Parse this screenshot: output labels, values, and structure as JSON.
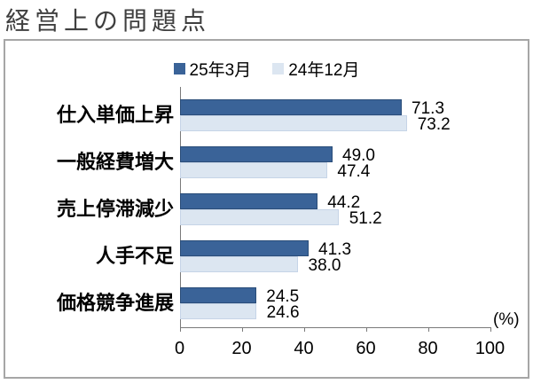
{
  "title": "経営上の問題点",
  "legend": [
    {
      "label": "25年3月",
      "color": "#3a6398"
    },
    {
      "label": "24年12月",
      "color": "#dce6f1"
    }
  ],
  "chart_data": {
    "type": "bar",
    "orientation": "horizontal",
    "title": "経営上の問題点",
    "categories": [
      "仕入単価上昇",
      "一般経費増大",
      "売上停滞減少",
      "人手不足",
      "価格競争進展"
    ],
    "series": [
      {
        "name": "25年3月",
        "color": "#3a6398",
        "border": "#2a4d79",
        "values": [
          71.3,
          49.0,
          44.2,
          41.3,
          24.5
        ]
      },
      {
        "name": "24年12月",
        "color": "#dce6f1",
        "border": "#c6d4e7",
        "values": [
          73.2,
          47.4,
          51.2,
          38.0,
          24.6
        ]
      }
    ],
    "x_ticks": [
      0,
      20,
      40,
      60,
      80,
      100
    ],
    "xlim": [
      0,
      100
    ],
    "unit_label": "(%)",
    "value_labels": true,
    "legend_position": "top-center",
    "grid": false
  }
}
